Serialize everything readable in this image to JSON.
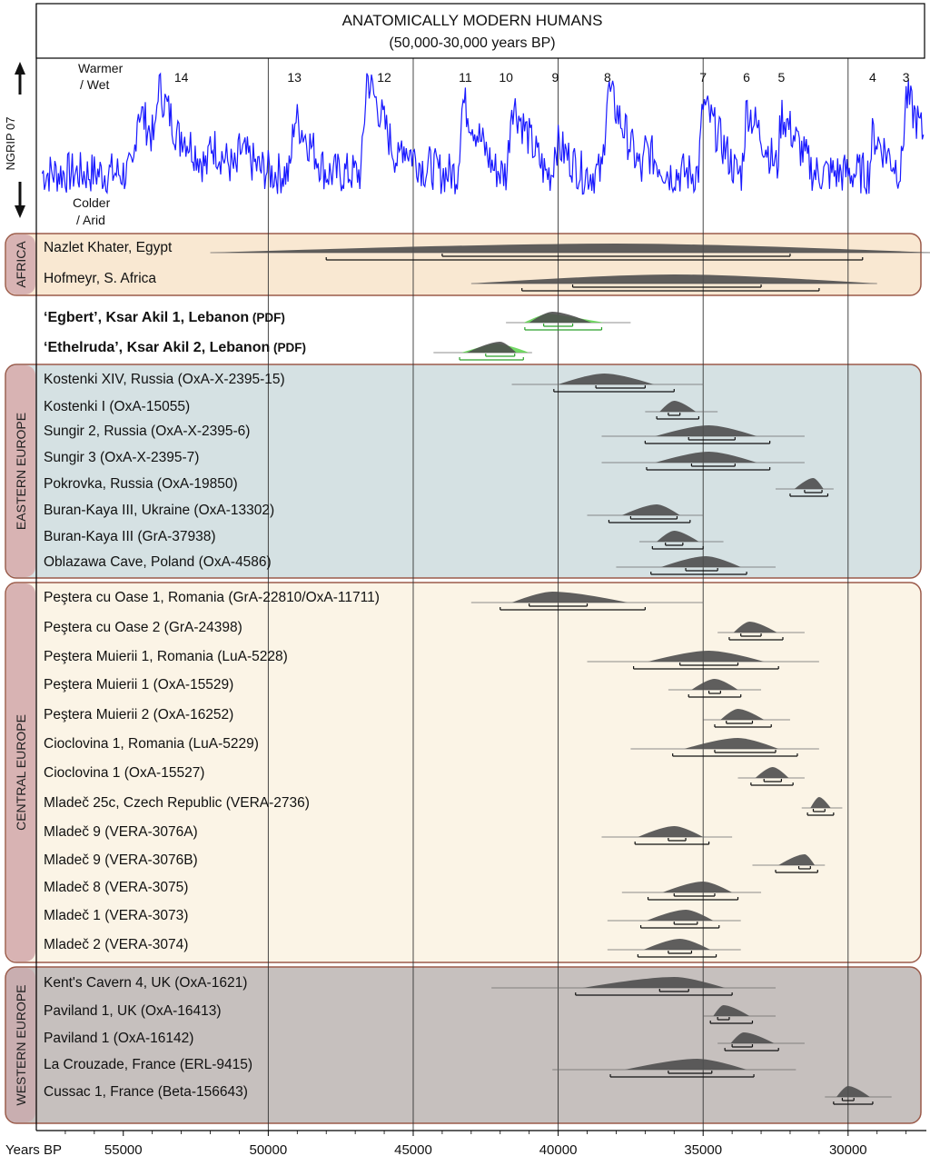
{
  "chart_data": {
    "type": "range",
    "title": "ANATOMICALLY MODERN HUMANS",
    "subtitle": "(50,000-30,000 years BP)",
    "xlabel": "Years BP",
    "x_range": [
      58000,
      27300
    ],
    "x_ticks": [
      55000,
      50000,
      45000,
      40000,
      35000,
      30000
    ],
    "gridlines": [
      50000,
      45000,
      40000,
      35000,
      30000
    ],
    "climate": {
      "ylabel": "NGRIP 07",
      "warm_label_1": "Warmer",
      "warm_label_2": "/ Wet",
      "cold_label_1": "Colder",
      "cold_label_2": "/ Arid",
      "line_color": "#1a1aff",
      "interstadials": [
        {
          "label": "14",
          "x": 53000
        },
        {
          "label": "13",
          "x": 49100
        },
        {
          "label": "12",
          "x": 46000
        },
        {
          "label": "11",
          "x": 43200
        },
        {
          "label": "10",
          "x": 41800
        },
        {
          "label": "9",
          "x": 40100
        },
        {
          "label": "8",
          "x": 38300
        },
        {
          "label": "7",
          "x": 35000
        },
        {
          "label": "6",
          "x": 33500
        },
        {
          "label": "5",
          "x": 32300
        },
        {
          "label": "4",
          "x": 29150
        },
        {
          "label": "3",
          "x": 28000
        }
      ]
    },
    "regions": [
      {
        "name": "AFRICA",
        "fill": "#f9e8d2",
        "stroke": "#9b5a4a",
        "label_fill": "#d8b3b3"
      },
      {
        "name": "EASTERN EUROPE",
        "fill": "#d5e1e3",
        "stroke": "#9b5a4a",
        "label_fill": "#d8b3b3"
      },
      {
        "name": "CENTRAL EUROPE",
        "fill": "#fbf4e6",
        "stroke": "#9b5a4a",
        "label_fill": "#d8b3b3"
      },
      {
        "name": "WESTERN EUROPE",
        "fill": "#c6c0be",
        "stroke": "#9b5a4a",
        "label_fill": "#c9aeb0"
      }
    ],
    "dates": [
      {
        "region": 0,
        "label": "Nazlet Khater, Egypt",
        "peak": 38000,
        "range": [
          44000,
          32000
        ],
        "outer": [
          52000,
          27000
        ],
        "flat": true
      },
      {
        "region": 0,
        "label": "Hofmeyr, S. Africa",
        "peak": 36000,
        "range": [
          39500,
          33000
        ],
        "outer": [
          43000,
          29000
        ],
        "flat": true
      },
      {
        "region": -1,
        "label": "‘Egbert’, Ksar Akil 1, Lebanon",
        "tag": "(PDF)",
        "peak": 40200,
        "range": [
          40500,
          39500
        ],
        "outer": [
          41800,
          37500
        ],
        "green": true
      },
      {
        "region": -1,
        "label": "‘Ethelruda’, Ksar Akil 2, Lebanon",
        "tag": "(PDF)",
        "peak": 42000,
        "range": [
          42500,
          41500
        ],
        "outer": [
          44300,
          40900
        ],
        "green": true
      },
      {
        "region": 1,
        "label": "Kostenki XIV, Russia (OxA-X-2395-15)",
        "peak": 38400,
        "range": [
          38700,
          37000
        ],
        "outer": [
          41600,
          35000
        ]
      },
      {
        "region": 1,
        "label": "Kostenki I (OxA-15055)",
        "peak": 36000,
        "range": [
          36200,
          35800
        ],
        "outer": [
          37000,
          34500
        ]
      },
      {
        "region": 1,
        "label": "Sungir 2, Russia (OxA-X-2395-6)",
        "peak": 34800,
        "range": [
          35500,
          33900
        ],
        "outer": [
          38500,
          31500
        ]
      },
      {
        "region": 1,
        "label": "Sungir 3 (OxA-X-2395-7)",
        "peak": 34800,
        "range": [
          35400,
          33900
        ],
        "outer": [
          38500,
          31500
        ]
      },
      {
        "region": 1,
        "label": "Pokrovka, Russia (OxA-19850)",
        "peak": 31200,
        "range": [
          31500,
          30900
        ],
        "outer": [
          32500,
          30500
        ]
      },
      {
        "region": 1,
        "label": "Buran-Kaya III, Ukraine (OxA-13302)",
        "peak": 36600,
        "range": [
          37500,
          35900
        ],
        "outer": [
          39000,
          35000
        ]
      },
      {
        "region": 1,
        "label": "Buran-Kaya III  (GrA-37938)",
        "peak": 36000,
        "range": [
          36300,
          35700
        ],
        "outer": [
          37200,
          34300
        ]
      },
      {
        "region": 1,
        "label": "Oblazawa Cave, Poland (OxA-4586)",
        "peak": 34900,
        "range": [
          35600,
          34500
        ],
        "outer": [
          38000,
          32500
        ]
      },
      {
        "region": 2,
        "label": "Peştera cu Oase 1, Romania (GrA-22810/OxA-11711)",
        "peak": 40200,
        "range": [
          41000,
          39000
        ],
        "outer": [
          43000,
          35000
        ]
      },
      {
        "region": 2,
        "label": "Peştera cu Oase 2 (GrA-24398)",
        "peak": 33400,
        "range": [
          33700,
          33000
        ],
        "outer": [
          34500,
          31500
        ]
      },
      {
        "region": 2,
        "label": "Peştera Muierii 1, Romania (LuA-5228)",
        "peak": 34800,
        "range": [
          35800,
          33800
        ],
        "outer": [
          39000,
          31000
        ]
      },
      {
        "region": 2,
        "label": "Peştera Muierii 1 (OxA-15529)",
        "peak": 34600,
        "range": [
          34800,
          34400
        ],
        "outer": [
          36200,
          33000
        ]
      },
      {
        "region": 2,
        "label": "Peştera Muierii 2 (OxA-16252)",
        "peak": 33800,
        "range": [
          34200,
          33300
        ],
        "outer": [
          35000,
          32000
        ]
      },
      {
        "region": 2,
        "label": "Cioclovina 1, Romania (LuA-5229)",
        "peak": 33800,
        "range": [
          34600,
          32500
        ],
        "outer": [
          37500,
          31000
        ]
      },
      {
        "region": 2,
        "label": "Cioclovina 1 (OxA-15527)",
        "peak": 32600,
        "range": [
          32900,
          32300
        ],
        "outer": [
          33800,
          31500
        ]
      },
      {
        "region": 2,
        "label": "Mladeč 25c, Czech Republic (VERA-2736)",
        "peak": 31000,
        "range": [
          31200,
          30800
        ],
        "outer": [
          31600,
          30200
        ]
      },
      {
        "region": 2,
        "label": "Mladeč 9 (VERA-3076A)",
        "peak": 36000,
        "range": [
          36200,
          35600
        ],
        "outer": [
          38500,
          34000
        ]
      },
      {
        "region": 2,
        "label": "Mladeč 9 (VERA-3076B)",
        "peak": 31500,
        "range": [
          31700,
          31300
        ],
        "outer": [
          33300,
          30800
        ]
      },
      {
        "region": 2,
        "label": "Mladeč 8 (VERA-3075)",
        "peak": 35000,
        "range": [
          36000,
          34600
        ],
        "outer": [
          37800,
          33000
        ]
      },
      {
        "region": 2,
        "label": "Mladeč 1 (VERA-3073)",
        "peak": 35600,
        "range": [
          36000,
          35200
        ],
        "outer": [
          38300,
          33700
        ]
      },
      {
        "region": 2,
        "label": "Mladeč 2 (VERA-3074)",
        "peak": 35800,
        "range": [
          36200,
          35400
        ],
        "outer": [
          38300,
          33700
        ]
      },
      {
        "region": 3,
        "label": "Kent's Cavern 4, UK (OxA-1621)",
        "peak": 36000,
        "range": [
          36500,
          35500
        ],
        "outer": [
          42300,
          32500
        ]
      },
      {
        "region": 3,
        "label": "Paviland 1, UK (OxA-16413)",
        "peak": 34300,
        "range": [
          34500,
          34100
        ],
        "outer": [
          35000,
          32500
        ]
      },
      {
        "region": 3,
        "label": "Paviland 1 (OxA-16142)",
        "peak": 33600,
        "range": [
          34000,
          33300
        ],
        "outer": [
          34500,
          31500
        ]
      },
      {
        "region": 3,
        "label": "La Crouzade, France (ERL-9415)",
        "peak": 35200,
        "range": [
          36200,
          34700
        ],
        "outer": [
          40200,
          31800
        ]
      },
      {
        "region": 3,
        "label": "Cussac 1, France (Beta-156643)",
        "peak": 30000,
        "range": [
          30200,
          29800
        ],
        "outer": [
          30800,
          28500
        ]
      }
    ]
  }
}
